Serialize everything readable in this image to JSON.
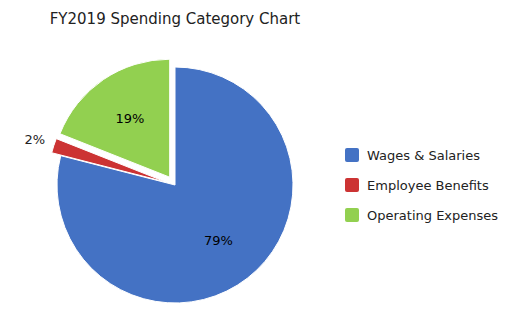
{
  "chart_data": {
    "type": "pie",
    "title": "FY2019 Spending  Category Chart",
    "categories": [
      "Wages & Salaries",
      "Employee Benefits",
      "Operating Expenses"
    ],
    "values": [
      79,
      2,
      19
    ],
    "value_labels": [
      "79%",
      "2%",
      "19%"
    ],
    "colors": [
      "#4472C4",
      "#CC3333",
      "#92D050"
    ],
    "data_labels": true,
    "legend": "right"
  }
}
